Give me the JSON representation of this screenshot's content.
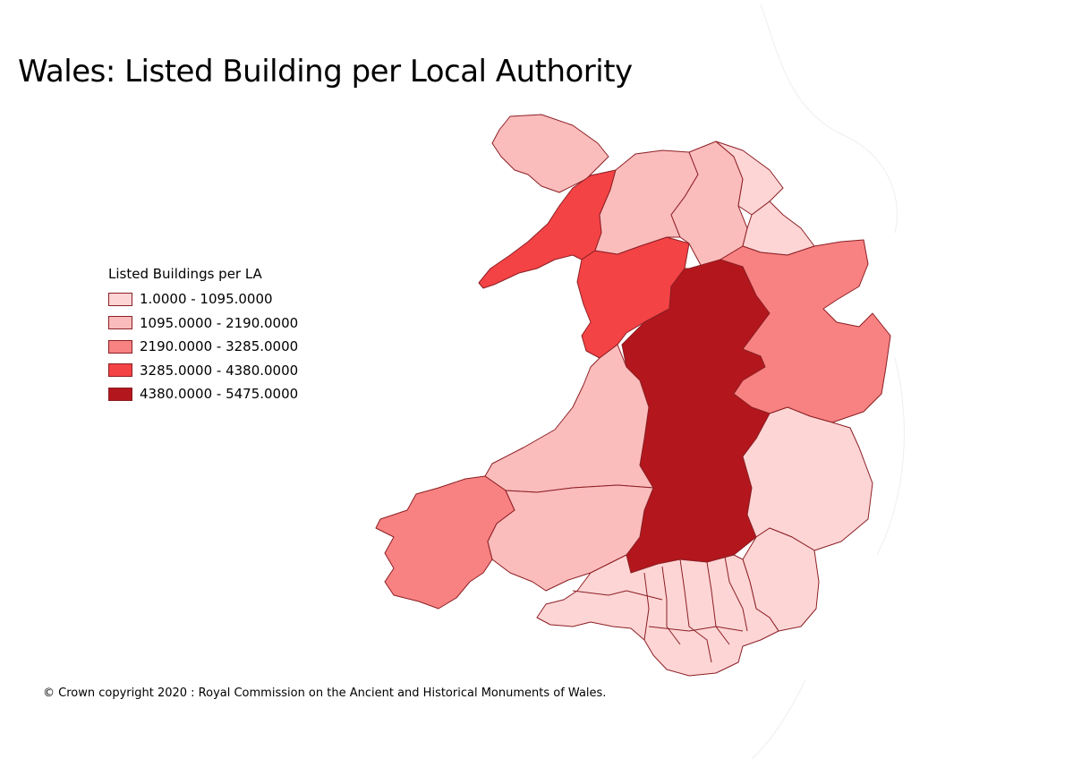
{
  "title": "Wales: Listed Building per Local Authority",
  "legend": {
    "title": "Listed Buildings per LA",
    "classes": [
      {
        "label": "1.0000 - 1095.0000",
        "color": "#fdd5d5"
      },
      {
        "label": "1095.0000 - 2190.0000",
        "color": "#fbbcbc"
      },
      {
        "label": "2190.0000 - 3285.0000",
        "color": "#f88282"
      },
      {
        "label": "3285.0000 - 4380.0000",
        "color": "#f44345"
      },
      {
        "label": "4380.0000 - 5475.0000",
        "color": "#b3161c"
      }
    ]
  },
  "copyright": "© Crown copyright 2020 : Royal Commission on the Ancient and Historical Monuments of Wales.",
  "colors": {
    "boundary": "#8c1f24",
    "background": "#ffffff"
  },
  "regions": [
    {
      "name": "anglesey",
      "class": 1
    },
    {
      "name": "gwynedd-north",
      "class": 3
    },
    {
      "name": "gwynedd-south",
      "class": 3
    },
    {
      "name": "conwy",
      "class": 1
    },
    {
      "name": "denbighshire",
      "class": 1
    },
    {
      "name": "flintshire",
      "class": 0
    },
    {
      "name": "wrexham",
      "class": 0
    },
    {
      "name": "powys",
      "class": 4
    },
    {
      "name": "ceredigion",
      "class": 1
    },
    {
      "name": "pembrokeshire",
      "class": 2
    },
    {
      "name": "carmarthenshire",
      "class": 1
    },
    {
      "name": "monmouthshire",
      "class": 2
    },
    {
      "name": "shropshire-border",
      "class": 0
    },
    {
      "name": "herefordshire-border",
      "class": 0
    },
    {
      "name": "south-wales-valleys",
      "class": 0
    }
  ]
}
